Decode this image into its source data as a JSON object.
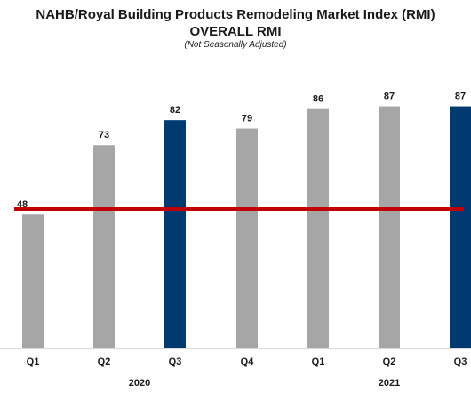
{
  "chart_data": {
    "type": "bar",
    "title": "NAHB/Royal Building Products Remodeling Market Index (RMI)",
    "subtitle": "OVERALL RMI",
    "note": "(Not Seasonally Adjusted)",
    "categories": [
      "Q1",
      "Q2",
      "Q3",
      "Q4",
      "Q1",
      "Q2",
      "Q3"
    ],
    "years": [
      {
        "label": "2020",
        "span": [
          0,
          3
        ]
      },
      {
        "label": "2021",
        "span": [
          4,
          6
        ]
      }
    ],
    "values": [
      48,
      73,
      82,
      79,
      86,
      87,
      87
    ],
    "highlight": [
      false,
      false,
      true,
      false,
      false,
      false,
      true
    ],
    "reference_line": 50,
    "ylim": [
      0,
      100
    ],
    "colors": {
      "bar": "#a6a6a6",
      "highlight": "#003a70",
      "line": "#c00000"
    }
  }
}
